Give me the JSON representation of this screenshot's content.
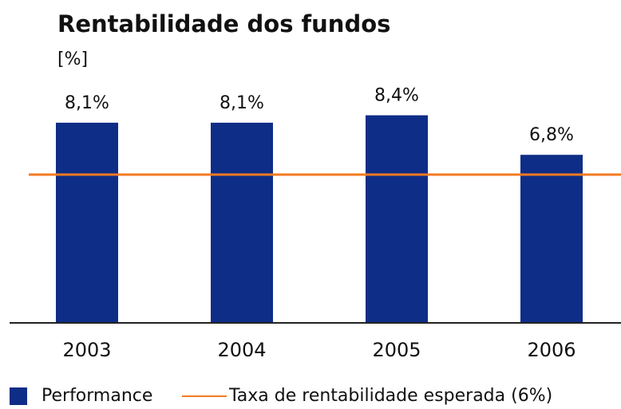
{
  "chart_data": {
    "type": "bar",
    "title": "Rentabilidade dos fundos",
    "subtitle": "[%]",
    "categories": [
      "2003",
      "2004",
      "2005",
      "2006"
    ],
    "series": [
      {
        "name": "Performance",
        "color": "#0e2d87",
        "values": [
          8.1,
          8.1,
          8.4,
          6.8
        ],
        "value_labels": [
          "8,1%",
          "8,1%",
          "8,4%",
          "6,8%"
        ]
      }
    ],
    "reference_line": {
      "name": "Taxa de rentabilidade esperada (6%)",
      "value": 6,
      "color": "#f47a20"
    },
    "legend": "bottom-left"
  }
}
